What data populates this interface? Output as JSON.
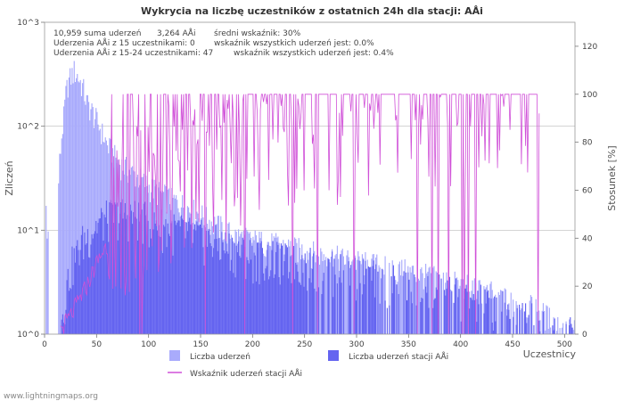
{
  "chart_data": {
    "type": "bar",
    "title": "Wykrycia na liczbę uczestników z ostatnich 24h dla stacji: AÅi",
    "xlabel": "Uczestnicy",
    "ylabel_left": "Zliczeń",
    "ylabel_right": "Stosunek [%]",
    "x_range": [
      0,
      510
    ],
    "y_scale": "log",
    "y_range": [
      1,
      1000
    ],
    "y2_range": [
      0,
      130
    ],
    "x_ticks": [
      "0",
      "50",
      "100",
      "150",
      "200",
      "250",
      "300",
      "350",
      "400",
      "450",
      "500"
    ],
    "y_ticks": [
      "10^0",
      "10^1",
      "10^2",
      "10^3"
    ],
    "y2_ticks": [
      "0",
      "20",
      "40",
      "60",
      "80",
      "100",
      "120"
    ],
    "stats": [
      [
        "10,959 suma uderzeń",
        "3,264 AÅi",
        "średni wskaźnik: 30%"
      ],
      [
        "Uderzenia AÅi z 15 uczestnikami: 0",
        "wskaźnik wszystkich uderzeń jest: 0.0%"
      ],
      [
        "Uderzenia AÅi z 15-24 uczestnikami: 47",
        "wskaźnik wszystkich uderzeń jest: 0.4%"
      ]
    ],
    "legend": {
      "total": "Liczba uderzeń",
      "station": "Liczba uderzeń stacji AÅi",
      "ratio": "Wskaźnik uderzeń stacji AÅi"
    },
    "colors": {
      "total": "#a9abfc",
      "station": "#6464f0",
      "ratio": "#d050d8",
      "grid": "#bbbbbb",
      "plot_bg": "#ffffff"
    },
    "series": [
      {
        "name": "Liczba uderzeń",
        "anchor_x": [
          1,
          2,
          13,
          15,
          18,
          20,
          22,
          25,
          28,
          30,
          33,
          36,
          40,
          45,
          50,
          55,
          60,
          70,
          80,
          90,
          100,
          120,
          140,
          160,
          180,
          200,
          230,
          260,
          300,
          350,
          400,
          430,
          450,
          470,
          490,
          500
        ],
        "anchor_y": [
          15,
          8,
          30,
          60,
          120,
          200,
          260,
          300,
          340,
          320,
          280,
          240,
          170,
          140,
          110,
          85,
          65,
          45,
          38,
          32,
          26,
          20,
          16,
          12,
          9,
          8,
          7,
          6,
          5,
          4,
          3,
          2.5,
          2,
          1.8,
          1.3,
          1.1
        ]
      },
      {
        "name": "Liczba uderzeń stacji AÅi",
        "anchor_x": [
          15,
          18,
          22,
          26,
          30,
          35,
          40,
          50,
          60,
          70,
          80,
          90,
          100,
          120,
          150,
          180,
          200,
          250,
          300,
          350,
          400,
          430,
          460,
          480,
          500
        ],
        "anchor_y": [
          1.2,
          2,
          3.5,
          5,
          6,
          8,
          9,
          12,
          14,
          15,
          15,
          14,
          13,
          11,
          9,
          7,
          6,
          5,
          4,
          3,
          2.5,
          2,
          1.6,
          1.3,
          1.1
        ]
      },
      {
        "name": "Wskaźnik uderzeń stacji AÅi",
        "anchor_x": [
          15,
          20,
          25,
          30,
          35,
          40,
          50,
          60,
          70,
          80,
          90,
          100,
          120,
          150,
          180,
          200,
          250,
          300,
          350,
          400,
          430,
          460,
          475
        ],
        "anchor_y": [
          2,
          5,
          8,
          12,
          16,
          20,
          30,
          38,
          44,
          50,
          54,
          58,
          62,
          66,
          72,
          78,
          85,
          90,
          93,
          96,
          98,
          100,
          100
        ]
      }
    ]
  },
  "watermark": "www.lightningmaps.org"
}
